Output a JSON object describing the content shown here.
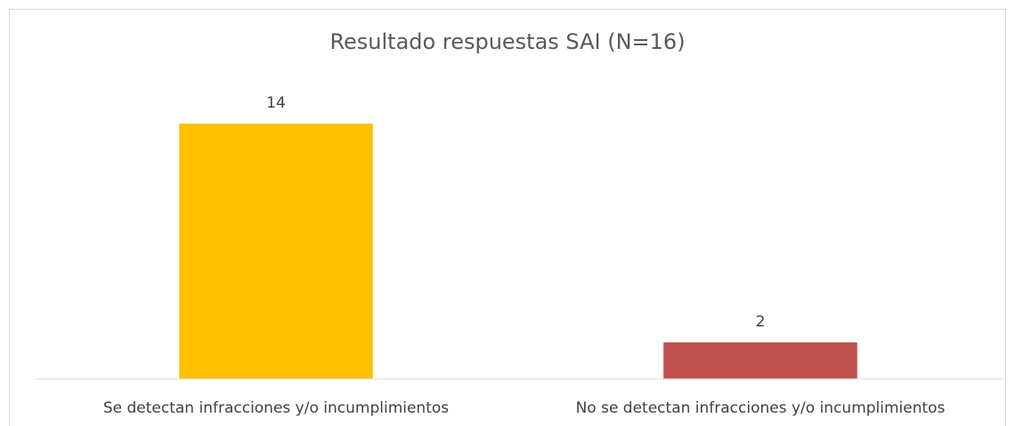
{
  "chart_data": {
    "type": "bar",
    "title": "Resultado respuestas SAI (N=16)",
    "categories": [
      "Se detectan infracciones y/o incumplimientos",
      "No se detectan infracciones y/o incumplimientos"
    ],
    "values": [
      14,
      2
    ],
    "colors": [
      "#ffc000",
      "#c0504d"
    ],
    "ylim": [
      0,
      16
    ]
  }
}
